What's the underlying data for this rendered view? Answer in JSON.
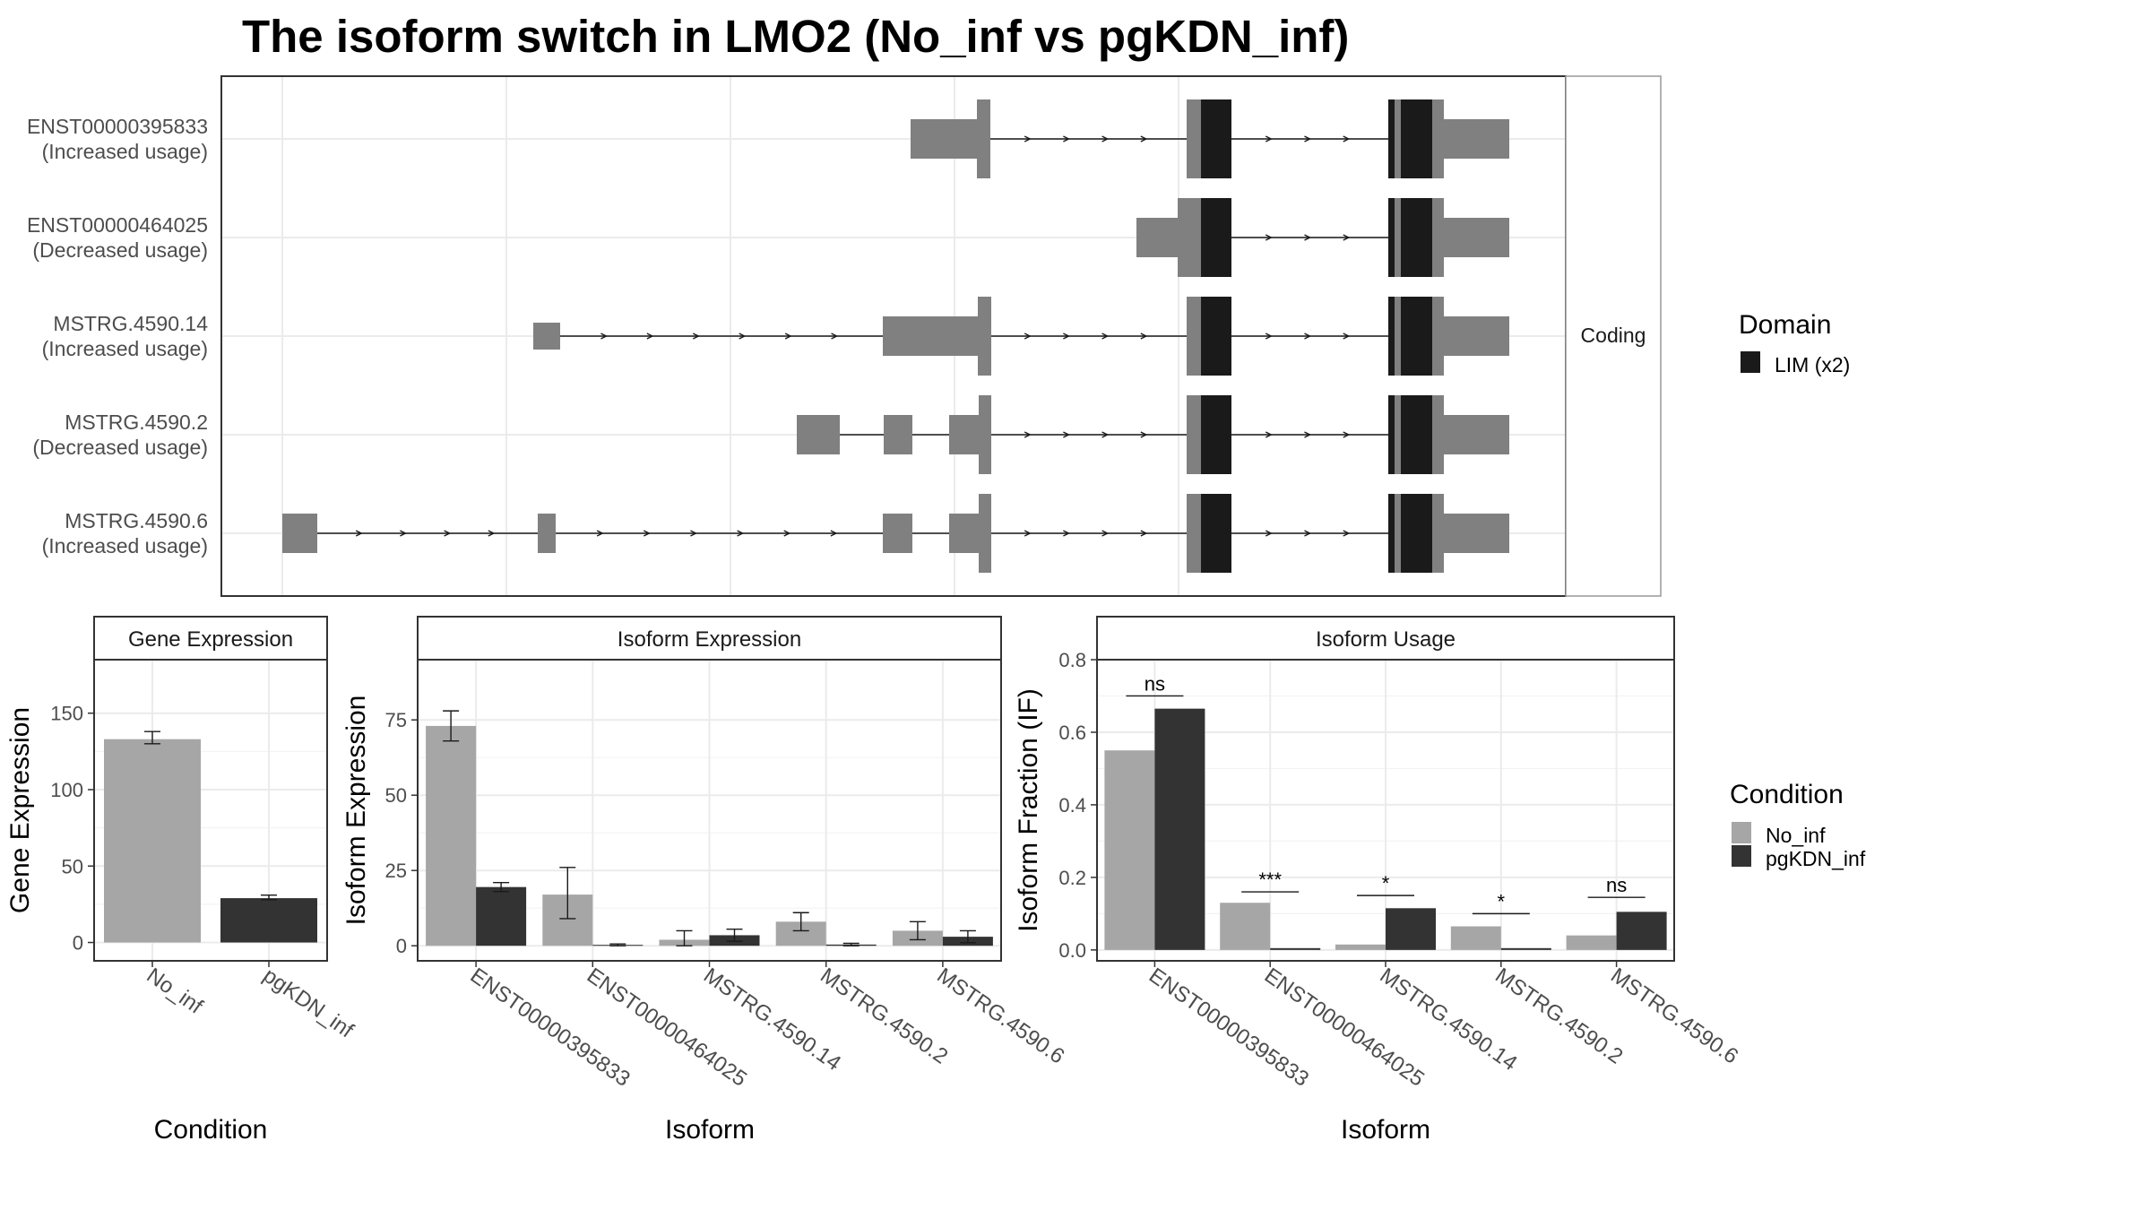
{
  "title": "The isoform switch in LMO2 (No_inf vs pgKDN_inf)",
  "colors": {
    "no_inf": "#a6a6a6",
    "pgkdn_inf": "#333333",
    "utr": "#808080",
    "domain": "#1a1a1a",
    "grid": "#ebebeb",
    "panel_border": "#333333",
    "strip_fill": "#ffffff"
  },
  "structure": {
    "strip_label": "Coding",
    "legend": {
      "title": "Domain",
      "items": [
        {
          "label": "LIM (x2)",
          "color": "#1a1a1a"
        }
      ]
    },
    "isoforms": [
      {
        "id": "ENST00000395833",
        "usage": "(Increased usage)"
      },
      {
        "id": "ENST00000464025",
        "usage": "(Decreased usage)"
      },
      {
        "id": "MSTRG.4590.14",
        "usage": "(Increased usage)"
      },
      {
        "id": "MSTRG.4590.2",
        "usage": "(Decreased usage)"
      },
      {
        "id": "MSTRG.4590.6",
        "usage": "(Increased usage)"
      }
    ]
  },
  "condition_legend": {
    "title": "Condition",
    "items": [
      {
        "label": "No_inf",
        "color": "#a6a6a6"
      },
      {
        "label": "pgKDN_inf",
        "color": "#333333"
      }
    ]
  },
  "chart_data": [
    {
      "type": "bar",
      "title": "Gene Expression",
      "xlabel": "Condition",
      "ylabel": "Gene Expression",
      "categories": [
        "No_inf",
        "pgKDN_inf"
      ],
      "values": [
        133,
        29
      ],
      "errors": [
        [
          130,
          138
        ],
        [
          28,
          31
        ]
      ],
      "ylim": [
        -12,
        185
      ],
      "yticks": [
        0,
        50,
        100,
        150
      ],
      "grid": true,
      "legend": "none"
    },
    {
      "type": "bar",
      "title": "Isoform Expression",
      "xlabel": "Isoform",
      "ylabel": "Isoform Expression",
      "categories": [
        "ENST00000395833",
        "ENST00000464025",
        "MSTRG.4590.14",
        "MSTRG.4590.2",
        "MSTRG.4590.6"
      ],
      "series": [
        {
          "name": "No_inf",
          "values": [
            73,
            17,
            2,
            8,
            5
          ],
          "errors": [
            [
              68,
              78
            ],
            [
              9,
              26
            ],
            [
              0,
              5
            ],
            [
              5,
              11
            ],
            [
              2,
              8
            ]
          ]
        },
        {
          "name": "pgKDN_inf",
          "values": [
            19.5,
            0.3,
            3.5,
            0.4,
            3
          ],
          "errors": [
            [
              18,
              21
            ],
            [
              0,
              0.6
            ],
            [
              1.5,
              5.5
            ],
            [
              0,
              0.8
            ],
            [
              1,
              5
            ]
          ]
        }
      ],
      "ylim": [
        -5,
        95
      ],
      "yticks": [
        0,
        25,
        50,
        75
      ],
      "grid": true,
      "legend": "right"
    },
    {
      "type": "bar",
      "title": "Isoform Usage",
      "xlabel": "Isoform",
      "ylabel": "Isoform Fraction (IF)",
      "categories": [
        "ENST00000395833",
        "ENST00000464025",
        "MSTRG.4590.14",
        "MSTRG.4590.2",
        "MSTRG.4590.6"
      ],
      "series": [
        {
          "name": "No_inf",
          "values": [
            0.55,
            0.13,
            0.015,
            0.065,
            0.04
          ]
        },
        {
          "name": "pgKDN_inf",
          "values": [
            0.665,
            0.005,
            0.115,
            0.005,
            0.105
          ]
        }
      ],
      "significance": [
        "ns",
        "***",
        "*",
        "*",
        "ns"
      ],
      "sig_levels": [
        0.7,
        0.16,
        0.15,
        0.1,
        0.145
      ],
      "ylim": [
        -0.03,
        0.8
      ],
      "yticks": [
        "0.0",
        "0.2",
        "0.4",
        "0.6",
        "0.8"
      ],
      "grid": true,
      "legend": "right"
    }
  ]
}
